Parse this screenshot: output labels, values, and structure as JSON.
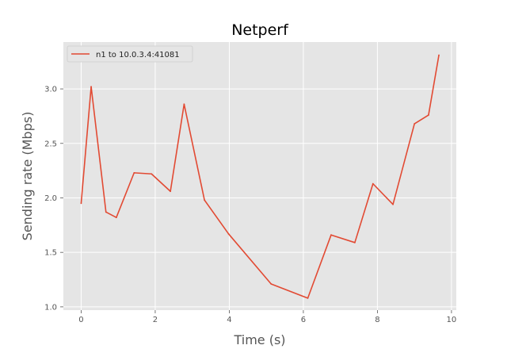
{
  "chart_data": {
    "type": "line",
    "title": "Netperf",
    "xlabel": "Time (s)",
    "ylabel": "Sending rate (Mbps)",
    "xlim": [
      -0.48,
      10.13
    ],
    "ylim": [
      0.97,
      3.43
    ],
    "x_ticks": [
      0,
      2,
      4,
      6,
      8,
      10
    ],
    "y_ticks": [
      1.0,
      1.5,
      2.0,
      2.5,
      3.0
    ],
    "grid": true,
    "legend_position": "top-left",
    "background_color": "#e5e5e5",
    "grid_color": "#ffffff",
    "series": [
      {
        "name": "n1 to 10.0.3.4:41081",
        "color": "#e24a33",
        "points": [
          {
            "x": 0.0,
            "y": 1.95
          },
          {
            "x": 0.27,
            "y": 3.02
          },
          {
            "x": 0.67,
            "y": 1.87
          },
          {
            "x": 0.95,
            "y": 1.82
          },
          {
            "x": 1.43,
            "y": 2.23
          },
          {
            "x": 1.9,
            "y": 2.22
          },
          {
            "x": 2.41,
            "y": 2.06
          },
          {
            "x": 2.78,
            "y": 2.86
          },
          {
            "x": 3.33,
            "y": 1.98
          },
          {
            "x": 3.98,
            "y": 1.67
          },
          {
            "x": 5.13,
            "y": 1.21
          },
          {
            "x": 6.12,
            "y": 1.08
          },
          {
            "x": 6.75,
            "y": 1.66
          },
          {
            "x": 7.39,
            "y": 1.59
          },
          {
            "x": 7.88,
            "y": 2.13
          },
          {
            "x": 8.42,
            "y": 1.94
          },
          {
            "x": 9.0,
            "y": 2.68
          },
          {
            "x": 9.38,
            "y": 2.76
          },
          {
            "x": 9.66,
            "y": 3.31
          }
        ]
      }
    ]
  }
}
